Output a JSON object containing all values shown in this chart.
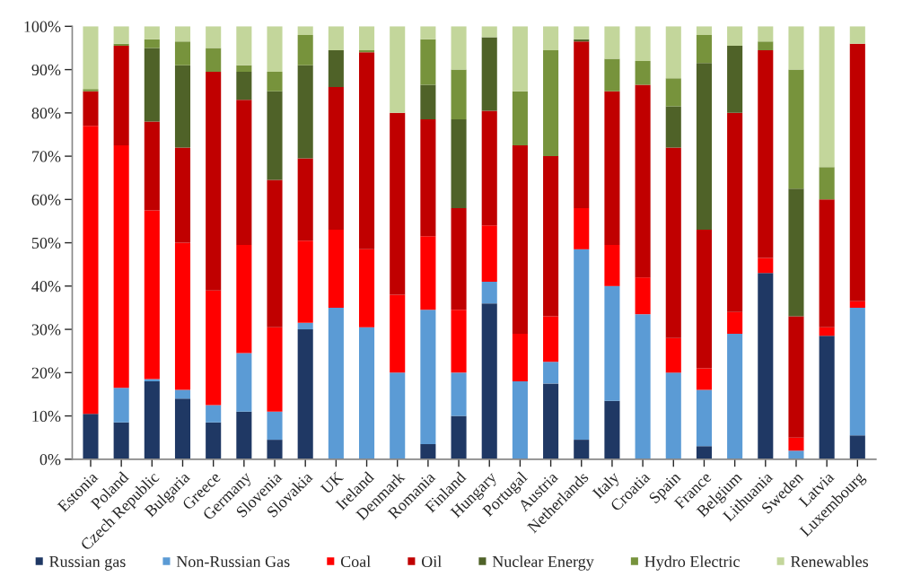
{
  "chart_data": {
    "type": "bar",
    "stacked": true,
    "categories": [
      "Estonia",
      "Poland",
      "Czech Republic",
      "Bulgaria",
      "Greece",
      "Germany",
      "Slovenia",
      "Slovakia",
      "UK",
      "Ireland",
      "Denmark",
      "Romania",
      "Finland",
      "Hungary",
      "Portugal",
      "Austria",
      "Netherlands",
      "Italy",
      "Croatia",
      "Spain",
      "France",
      "Belgium",
      "Lithuania",
      "Sweden",
      "Latvia",
      "Luxembourg"
    ],
    "series": [
      {
        "name": "Russian gas",
        "color": "#1f3864",
        "values": [
          10.5,
          8.5,
          18,
          14,
          8.5,
          11,
          4.5,
          30,
          0,
          0,
          0,
          3.5,
          10,
          36,
          0,
          17.5,
          4.5,
          13.5,
          0,
          0,
          3,
          0,
          43,
          0,
          28.5,
          5.5
        ]
      },
      {
        "name": "Non-Russian Gas",
        "color": "#5b9bd5",
        "values": [
          0,
          8,
          0.5,
          2,
          4,
          13.5,
          6.5,
          1.5,
          35,
          30.5,
          20,
          31,
          10,
          5,
          18,
          5,
          44,
          26.5,
          33.5,
          20,
          13,
          29,
          0,
          2,
          0,
          29.5
        ]
      },
      {
        "name": "Coal",
        "color": "#ff0000",
        "values": [
          66.5,
          56,
          39,
          34,
          26.5,
          25,
          19.5,
          19,
          18,
          18,
          18,
          17,
          14.5,
          13,
          11,
          10.5,
          9.5,
          9.5,
          8.5,
          8,
          5,
          5,
          3.5,
          3,
          2,
          1.5
        ]
      },
      {
        "name": "Oil",
        "color": "#c00000",
        "values": [
          8,
          23,
          20.5,
          22,
          50.5,
          33.5,
          34,
          19,
          33,
          45.5,
          42,
          27,
          23.5,
          26.5,
          43.5,
          37,
          38.5,
          35.5,
          44.5,
          44,
          32,
          46,
          48,
          28,
          29.5,
          59.5
        ]
      },
      {
        "name": "Nuclear Energy",
        "color": "#4f6228",
        "values": [
          0,
          0,
          17,
          19,
          0,
          6.5,
          20.5,
          21.5,
          8.5,
          0,
          0,
          8,
          20.5,
          17,
          0,
          0,
          0.5,
          0,
          0,
          9.5,
          38.5,
          15.5,
          0,
          29.5,
          0,
          0
        ]
      },
      {
        "name": "Hydro Electric",
        "color": "#77933c",
        "values": [
          0.5,
          0.5,
          2,
          5.5,
          5.5,
          1.5,
          4.5,
          7,
          0,
          0.5,
          0,
          10.5,
          11.5,
          0,
          12.5,
          24.5,
          0,
          7.5,
          5.5,
          6.5,
          6.5,
          0,
          2,
          27.5,
          7.5,
          0
        ]
      },
      {
        "name": "Renewables",
        "color": "#c3d69b",
        "values": [
          14.5,
          4,
          3,
          3.5,
          5,
          9,
          10.5,
          2,
          5.5,
          5.5,
          20,
          3,
          10,
          2.5,
          15,
          5.5,
          3,
          7.5,
          8,
          12,
          2,
          4.5,
          3.5,
          10,
          32.5,
          4
        ]
      }
    ],
    "ylim": [
      0,
      100
    ],
    "yticks": [
      {
        "value": 0,
        "label": "0%"
      },
      {
        "value": 10,
        "label": "10%"
      },
      {
        "value": 20,
        "label": "20%"
      },
      {
        "value": 30,
        "label": "30%"
      },
      {
        "value": 40,
        "label": "40%"
      },
      {
        "value": 50,
        "label": "50%"
      },
      {
        "value": 60,
        "label": "60%"
      },
      {
        "value": 70,
        "label": "70%"
      },
      {
        "value": 80,
        "label": "80%"
      },
      {
        "value": 90,
        "label": "90%"
      },
      {
        "value": 100,
        "label": "100%"
      }
    ],
    "grid": false,
    "legend": "bottom"
  }
}
